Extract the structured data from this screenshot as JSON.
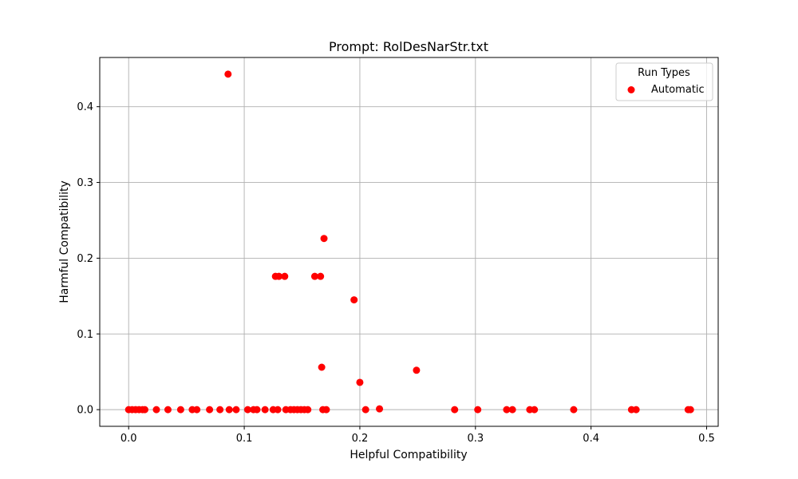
{
  "chart_data": {
    "type": "scatter",
    "title": "Prompt: RolDesNarStr.txt",
    "xlabel": "Helpful Compatibility",
    "ylabel": "Harmful Compatibility",
    "xlim": [
      -0.025,
      0.51
    ],
    "ylim": [
      -0.022,
      0.465
    ],
    "xticks": [
      0.0,
      0.1,
      0.2,
      0.3,
      0.4,
      0.5
    ],
    "xtick_labels": [
      "0.0",
      "0.1",
      "0.2",
      "0.3",
      "0.4",
      "0.5"
    ],
    "yticks": [
      0.0,
      0.1,
      0.2,
      0.3,
      0.4
    ],
    "ytick_labels": [
      "0.0",
      "0.1",
      "0.2",
      "0.3",
      "0.4"
    ],
    "grid": true,
    "legend": {
      "title": "Run Types",
      "position": "top-right"
    },
    "series": [
      {
        "name": "Automatic",
        "color": "#ff0000",
        "points": [
          [
            0.0,
            0.0
          ],
          [
            0.003,
            0.0
          ],
          [
            0.006,
            0.0
          ],
          [
            0.009,
            0.0
          ],
          [
            0.012,
            0.0
          ],
          [
            0.014,
            0.0
          ],
          [
            0.024,
            0.0
          ],
          [
            0.034,
            0.0
          ],
          [
            0.045,
            0.0
          ],
          [
            0.055,
            0.0
          ],
          [
            0.059,
            0.0
          ],
          [
            0.07,
            0.0
          ],
          [
            0.079,
            0.0
          ],
          [
            0.087,
            0.0
          ],
          [
            0.093,
            0.0
          ],
          [
            0.103,
            0.0
          ],
          [
            0.108,
            0.0
          ],
          [
            0.111,
            0.0
          ],
          [
            0.118,
            0.0
          ],
          [
            0.125,
            0.0
          ],
          [
            0.129,
            0.0
          ],
          [
            0.136,
            0.0
          ],
          [
            0.14,
            0.0
          ],
          [
            0.143,
            0.0
          ],
          [
            0.146,
            0.0
          ],
          [
            0.149,
            0.0
          ],
          [
            0.152,
            0.0
          ],
          [
            0.155,
            0.0
          ],
          [
            0.168,
            0.0
          ],
          [
            0.171,
            0.0
          ],
          [
            0.205,
            0.0
          ],
          [
            0.217,
            0.001
          ],
          [
            0.282,
            0.0
          ],
          [
            0.302,
            0.0
          ],
          [
            0.327,
            0.0
          ],
          [
            0.332,
            0.0
          ],
          [
            0.347,
            0.0
          ],
          [
            0.351,
            0.0
          ],
          [
            0.385,
            0.0
          ],
          [
            0.435,
            0.0
          ],
          [
            0.439,
            0.0
          ],
          [
            0.484,
            0.0
          ],
          [
            0.486,
            0.0
          ],
          [
            0.086,
            0.443
          ],
          [
            0.169,
            0.226
          ],
          [
            0.127,
            0.176
          ],
          [
            0.13,
            0.176
          ],
          [
            0.135,
            0.176
          ],
          [
            0.161,
            0.176
          ],
          [
            0.166,
            0.176
          ],
          [
            0.195,
            0.145
          ],
          [
            0.167,
            0.056
          ],
          [
            0.249,
            0.052
          ],
          [
            0.2,
            0.036
          ]
        ]
      }
    ]
  }
}
